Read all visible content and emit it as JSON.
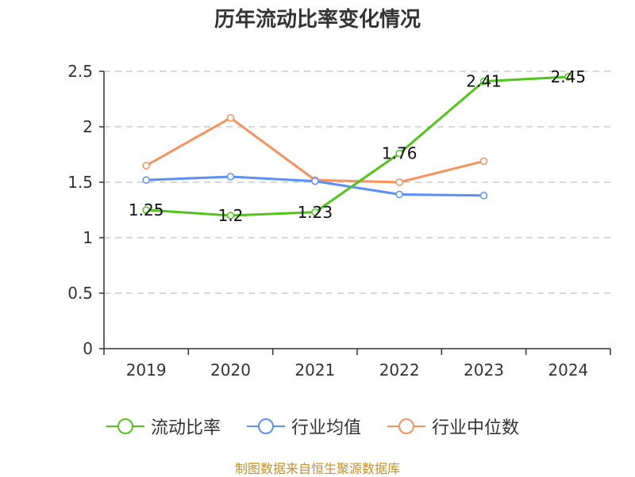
{
  "title": "历年流动比率变化情况",
  "source": "制图数据来自恒生聚源数据库",
  "colors": {
    "series": [
      "#52c41a",
      "#5b8ff9",
      "#f7925e"
    ],
    "grid": "#cccccc",
    "axis": "#333333"
  },
  "chart_data": {
    "type": "line",
    "title": "历年流动比率变化情况",
    "categories": [
      "2019",
      "2020",
      "2021",
      "2022",
      "2023",
      "2024"
    ],
    "ylim": [
      0,
      2.5
    ],
    "yticks": [
      "0",
      "0.5",
      "1",
      "1.5",
      "2",
      "2.5"
    ],
    "grid": true,
    "legend_position": "bottom",
    "series": [
      {
        "name": "流动比率",
        "values": [
          1.25,
          1.2,
          1.23,
          1.76,
          2.41,
          2.45
        ],
        "labels": [
          "1.25",
          "1.2",
          "1.23",
          "1.76",
          "2.41",
          "2.45"
        ]
      },
      {
        "name": "行业均值",
        "values": [
          1.52,
          1.55,
          1.51,
          1.39,
          1.38,
          null
        ]
      },
      {
        "name": "行业中位数",
        "values": [
          1.65,
          2.08,
          1.52,
          1.5,
          1.69,
          null
        ]
      }
    ]
  }
}
